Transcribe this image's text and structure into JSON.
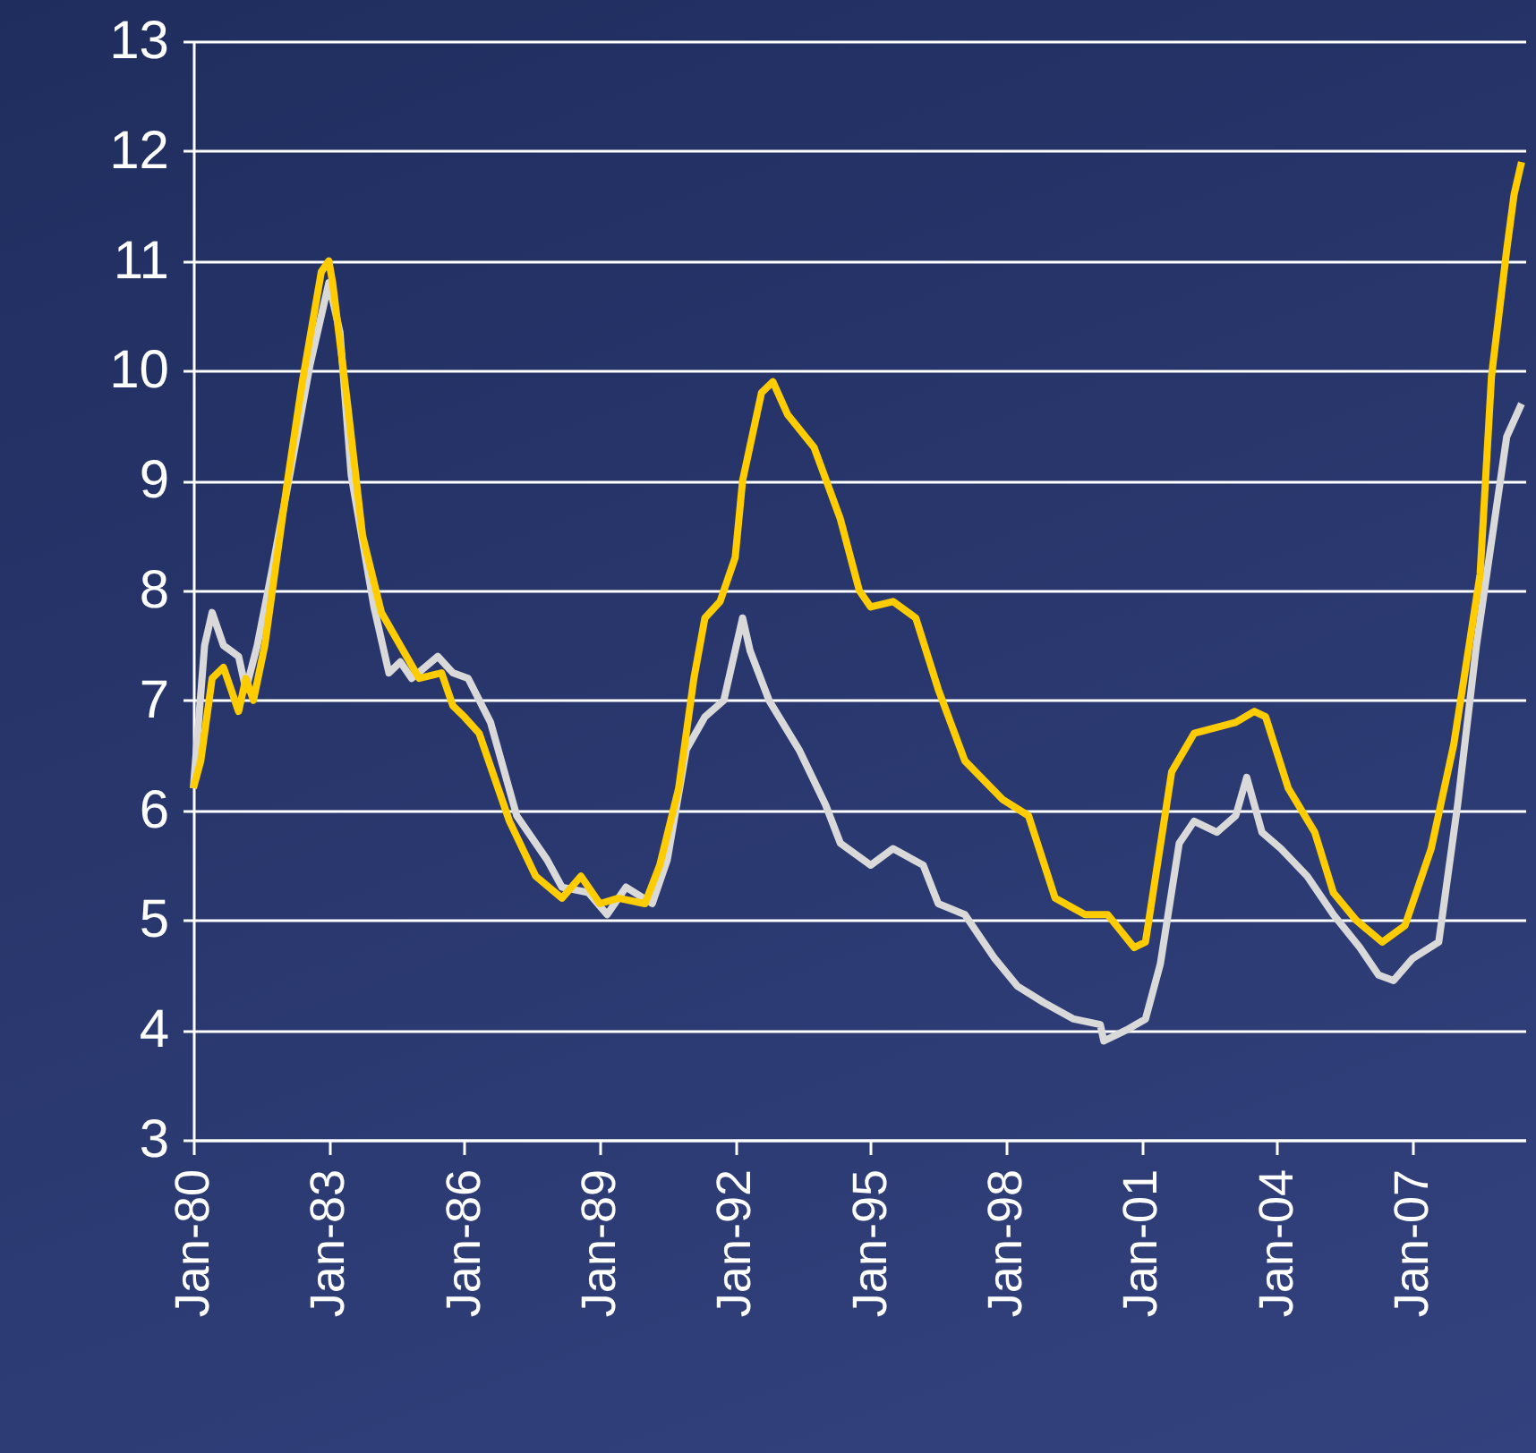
{
  "chart_data": {
    "type": "line",
    "xlim": [
      "1980-01",
      "2009-07"
    ],
    "ylim": [
      3,
      13
    ],
    "yticks": [
      3,
      4,
      5,
      6,
      7,
      8,
      9,
      10,
      11,
      12,
      13
    ],
    "xticks": [
      {
        "value": "1980-01",
        "label": "Jan-80"
      },
      {
        "value": "1983-01",
        "label": "Jan-83"
      },
      {
        "value": "1986-01",
        "label": "Jan-86"
      },
      {
        "value": "1989-01",
        "label": "Jan-89"
      },
      {
        "value": "1992-01",
        "label": "Jan-92"
      },
      {
        "value": "1995-01",
        "label": "Jan-95"
      },
      {
        "value": "1998-01",
        "label": "Jan-98"
      },
      {
        "value": "2001-01",
        "label": "Jan-01"
      },
      {
        "value": "2004-01",
        "label": "Jan-04"
      },
      {
        "value": "2007-01",
        "label": "Jan-07"
      }
    ],
    "grid": "y",
    "legend": false,
    "series": [
      {
        "color": "#d9d9d9",
        "x": [
          "1980-01",
          "1980-04",
          "1980-06",
          "1980-09",
          "1981-01",
          "1981-03",
          "1981-06",
          "1981-10",
          "1982-04",
          "1982-08",
          "1983-01",
          "1983-04",
          "1983-07",
          "1984-01",
          "1984-05",
          "1984-08",
          "1984-11",
          "1985-06",
          "1985-10",
          "1986-02",
          "1986-08",
          "1987-03",
          "1987-11",
          "1988-03",
          "1988-10",
          "1989-03",
          "1989-08",
          "1990-03",
          "1990-07",
          "1990-12",
          "1991-05",
          "1991-10",
          "1992-03",
          "1992-05",
          "1992-10",
          "1993-06",
          "1994-01",
          "1994-05",
          "1995-01",
          "1995-07",
          "1996-03",
          "1996-07",
          "1997-02",
          "1997-10",
          "1998-04",
          "1998-11",
          "1999-07",
          "2000-02",
          "2000-03",
          "2000-09",
          "2001-02",
          "2001-06",
          "2001-11",
          "2002-03",
          "2002-09",
          "2003-02",
          "2003-05",
          "2003-09",
          "2004-02",
          "2004-09",
          "2005-04",
          "2005-11",
          "2006-04",
          "2006-08",
          "2007-01",
          "2007-08",
          "2008-01",
          "2008-06",
          "2009-02",
          "2009-06"
        ],
        "values": [
          6.2,
          7.5,
          7.8,
          7.5,
          7.4,
          7.1,
          7.5,
          8.2,
          9.3,
          10.05,
          10.8,
          10.35,
          9.05,
          7.85,
          7.25,
          7.35,
          7.2,
          7.4,
          7.25,
          7.2,
          6.8,
          5.95,
          5.55,
          5.3,
          5.25,
          5.05,
          5.3,
          5.15,
          5.55,
          6.55,
          6.85,
          7.0,
          7.75,
          7.45,
          7.0,
          6.55,
          6.05,
          5.7,
          5.5,
          5.65,
          5.5,
          5.15,
          5.05,
          4.65,
          4.4,
          4.25,
          4.1,
          4.05,
          3.9,
          4.0,
          4.1,
          4.6,
          5.7,
          5.9,
          5.8,
          5.95,
          6.3,
          5.8,
          5.65,
          5.4,
          5.05,
          4.75,
          4.5,
          4.45,
          4.65,
          4.8,
          6.05,
          7.5,
          9.4,
          9.7
        ]
      },
      {
        "color": "#ffcc00",
        "x": [
          "1980-01",
          "1980-03",
          "1980-06",
          "1980-09",
          "1981-01",
          "1981-03",
          "1981-05",
          "1981-08",
          "1982-02",
          "1982-06",
          "1982-11",
          "1983-01",
          "1983-02",
          "1983-06",
          "1983-10",
          "1984-03",
          "1984-08",
          "1985-01",
          "1985-07",
          "1985-10",
          "1986-01",
          "1986-05",
          "1987-01",
          "1987-08",
          "1988-03",
          "1988-08",
          "1989-01",
          "1989-06",
          "1990-01",
          "1990-05",
          "1990-10",
          "1991-02",
          "1991-05",
          "1991-09",
          "1992-01",
          "1992-03",
          "1992-08",
          "1992-11",
          "1993-03",
          "1993-10",
          "1994-05",
          "1994-10",
          "1995-01",
          "1995-07",
          "1996-01",
          "1996-07",
          "1997-02",
          "1997-12",
          "1998-07",
          "1999-02",
          "1999-10",
          "2000-04",
          "2000-11",
          "2001-02",
          "2001-09",
          "2002-03",
          "2003-02",
          "2003-07",
          "2003-10",
          "2004-04",
          "2004-11",
          "2005-04",
          "2005-10",
          "2006-05",
          "2006-11",
          "2007-06",
          "2007-12",
          "2008-07",
          "2008-10",
          "2009-02",
          "2009-04",
          "2009-06"
        ],
        "values": [
          6.2,
          6.45,
          7.2,
          7.3,
          6.9,
          7.2,
          7.0,
          7.5,
          9.0,
          9.9,
          10.9,
          11.0,
          10.8,
          9.7,
          8.5,
          7.8,
          7.5,
          7.2,
          7.25,
          6.95,
          6.85,
          6.7,
          5.9,
          5.4,
          5.2,
          5.4,
          5.15,
          5.2,
          5.15,
          5.5,
          6.2,
          7.2,
          7.75,
          7.9,
          8.3,
          9.0,
          9.8,
          9.9,
          9.6,
          9.3,
          8.65,
          8.0,
          7.85,
          7.9,
          7.75,
          7.1,
          6.45,
          6.1,
          5.95,
          5.2,
          5.05,
          5.05,
          4.75,
          4.8,
          6.35,
          6.7,
          6.8,
          6.9,
          6.85,
          6.2,
          5.8,
          5.25,
          5.0,
          4.8,
          4.95,
          5.65,
          6.6,
          8.15,
          9.95,
          11.1,
          11.6,
          11.9
        ]
      }
    ]
  }
}
